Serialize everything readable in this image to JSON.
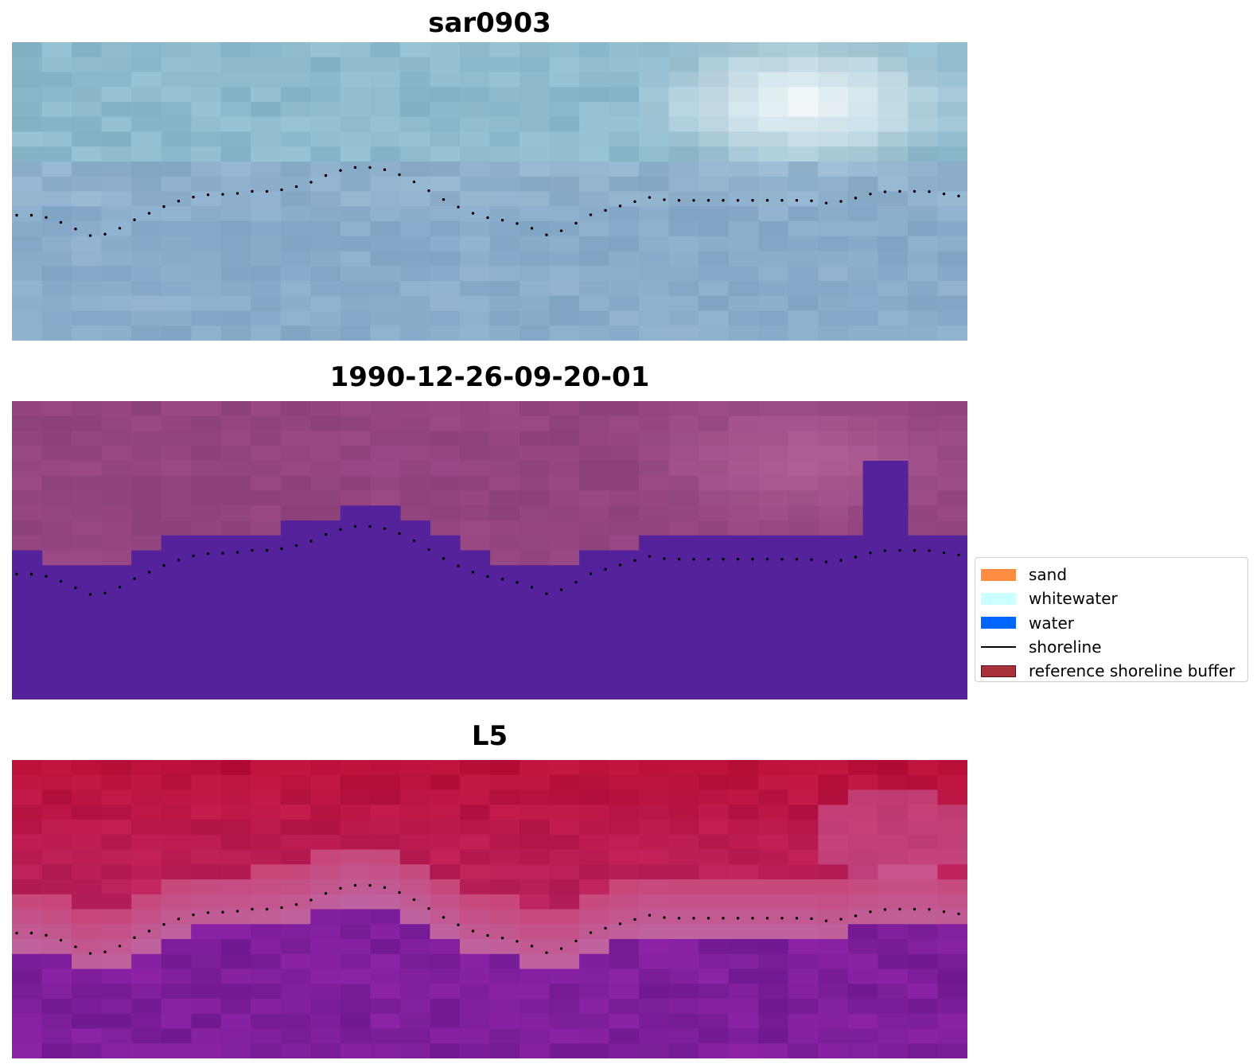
{
  "panels": [
    {
      "title": "sar0903",
      "style": "sar"
    },
    {
      "title": "1990-12-26-09-20-01",
      "style": "class"
    },
    {
      "title": "L5",
      "style": "l5"
    }
  ],
  "shoreline_profile": [
    0.58,
    0.58,
    0.59,
    0.62,
    0.65,
    0.64,
    0.6,
    0.57,
    0.54,
    0.52,
    0.51,
    0.51,
    0.5,
    0.5,
    0.49,
    0.47,
    0.44,
    0.42,
    0.42,
    0.43,
    0.46,
    0.5,
    0.54,
    0.57,
    0.59,
    0.6,
    0.62,
    0.65,
    0.62,
    0.58,
    0.56,
    0.54,
    0.52,
    0.53,
    0.53,
    0.53,
    0.53,
    0.53,
    0.53,
    0.53,
    0.53,
    0.54,
    0.53,
    0.51,
    0.5,
    0.5,
    0.5,
    0.51,
    0.52
  ],
  "legend": {
    "items": [
      {
        "label": "sand",
        "color": "#ff8c42",
        "kind": "patch"
      },
      {
        "label": "whitewater",
        "color": "#ccffff",
        "kind": "patch"
      },
      {
        "label": "water",
        "color": "#0066ff",
        "kind": "patch"
      },
      {
        "label": "shoreline",
        "color": "#000000",
        "kind": "line"
      },
      {
        "label": "reference shoreline buffer",
        "color": "#a8323c",
        "kind": "patch-border"
      }
    ]
  },
  "colors": {
    "sar_base": "#8eb0cc",
    "class_background": "#93457f",
    "class_water": "#54229a",
    "l5_top": "#b9103a",
    "l5_bottom": "#7e1e9c",
    "shoreline_dots": "#000000"
  }
}
